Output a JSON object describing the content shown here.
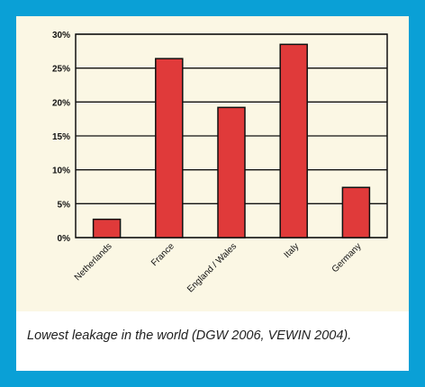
{
  "chart_data": {
    "type": "bar",
    "categories": [
      "Netherlands",
      "France",
      "England / Wales",
      "Italy",
      "Germany"
    ],
    "values": [
      2.7,
      26.4,
      19.2,
      28.5,
      7.4
    ],
    "ylim": [
      0,
      30
    ],
    "yticks": [
      "0%",
      "5%",
      "10%",
      "15%",
      "20%",
      "25%",
      "30%"
    ],
    "ytick_values": [
      0,
      5,
      10,
      15,
      20,
      25,
      30
    ],
    "grid": true,
    "bar_color": "#e03a3a",
    "title": "",
    "xlabel": "",
    "ylabel": ""
  },
  "caption": "Lowest leakage in the world (DGW 2006, VEWIN 2004)."
}
